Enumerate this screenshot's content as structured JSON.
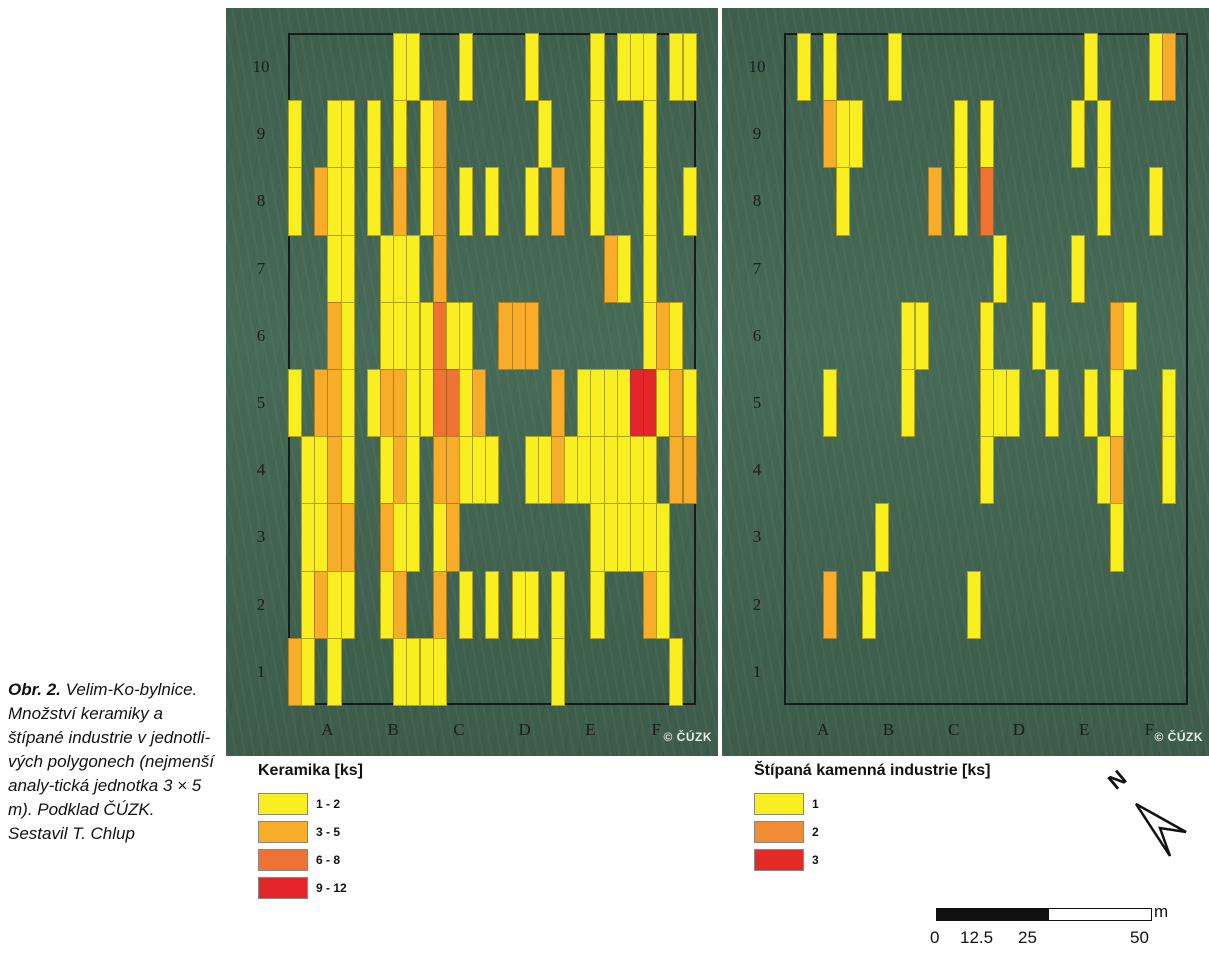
{
  "caption": {
    "label": "Obr. 2.",
    "text": " Velim-Ko-bylnice. Množství keramiky a štípané industrie v jednotli-vých polygonech (nejmenší analy-tická jednotka 3 × 5 m). Podklad ČÚZK. Sestavil T. Chlup"
  },
  "colors": {
    "1": "#f8ee20",
    "2": "#f7ad2a",
    "3": "#ef7232",
    "4": "#e3262a",
    "k1": "#f8ee20",
    "k2": "#f08d36",
    "k3": "#e22a27",
    "background": "#436550",
    "frame": "#1a1a1a"
  },
  "maps": {
    "row_labels": [
      "10",
      "9",
      "8",
      "7",
      "6",
      "5",
      "4",
      "3",
      "2",
      "1"
    ],
    "col_labels": [
      "A",
      "B",
      "C",
      "D",
      "E",
      "F"
    ],
    "copyright": "© ČÚZK",
    "keramika": {
      "legend_title": "Keramika [ks]",
      "legend": [
        {
          "label": "1 - 2",
          "color_key": "1"
        },
        {
          "label": "3 - 5",
          "color_key": "2"
        },
        {
          "label": "6 - 8",
          "color_key": "3"
        },
        {
          "label": "9 - 12",
          "color_key": "4"
        }
      ],
      "cells": [
        [
          0,
          0,
          0,
          0,
          0,
          0,
          0,
          0,
          1,
          1,
          0,
          0,
          0,
          1,
          0,
          0,
          0,
          0,
          1,
          0,
          0,
          0,
          0,
          1,
          0,
          1,
          1,
          1,
          0,
          1,
          1
        ],
        [
          1,
          0,
          0,
          1,
          1,
          0,
          1,
          0,
          1,
          0,
          1,
          2,
          0,
          0,
          0,
          0,
          0,
          0,
          0,
          1,
          0,
          0,
          0,
          1,
          0,
          0,
          0,
          1,
          0,
          0,
          0
        ],
        [
          1,
          0,
          2,
          1,
          1,
          0,
          1,
          0,
          2,
          0,
          1,
          2,
          0,
          1,
          0,
          1,
          0,
          0,
          1,
          0,
          2,
          0,
          0,
          1,
          0,
          0,
          0,
          1,
          0,
          0,
          1
        ],
        [
          0,
          0,
          0,
          1,
          1,
          0,
          0,
          1,
          1,
          1,
          0,
          2,
          0,
          0,
          0,
          0,
          0,
          0,
          0,
          0,
          0,
          0,
          0,
          0,
          2,
          1,
          0,
          1,
          0,
          0,
          0
        ],
        [
          0,
          0,
          0,
          2,
          1,
          0,
          0,
          1,
          1,
          1,
          1,
          3,
          1,
          1,
          0,
          0,
          2,
          2,
          2,
          0,
          0,
          0,
          0,
          0,
          0,
          0,
          0,
          1,
          2,
          1,
          0
        ],
        [
          1,
          0,
          2,
          2,
          1,
          0,
          1,
          2,
          2,
          1,
          1,
          3,
          3,
          1,
          2,
          0,
          0,
          0,
          0,
          0,
          2,
          0,
          1,
          1,
          1,
          1,
          4,
          4,
          1,
          2,
          1
        ],
        [
          0,
          1,
          1,
          2,
          1,
          0,
          0,
          1,
          2,
          1,
          0,
          2,
          2,
          1,
          1,
          1,
          0,
          0,
          1,
          1,
          2,
          1,
          1,
          1,
          1,
          1,
          1,
          1,
          0,
          2,
          2
        ],
        [
          0,
          1,
          1,
          2,
          2,
          0,
          0,
          2,
          1,
          1,
          0,
          1,
          2,
          0,
          0,
          0,
          0,
          0,
          0,
          0,
          0,
          0,
          0,
          1,
          1,
          1,
          1,
          1,
          1,
          0,
          0
        ],
        [
          0,
          1,
          2,
          1,
          1,
          0,
          0,
          1,
          2,
          0,
          0,
          2,
          0,
          1,
          0,
          1,
          0,
          1,
          1,
          0,
          1,
          0,
          0,
          1,
          0,
          0,
          0,
          2,
          1,
          0,
          0
        ],
        [
          2,
          1,
          0,
          1,
          0,
          0,
          0,
          0,
          1,
          1,
          1,
          1,
          0,
          0,
          0,
          0,
          0,
          0,
          0,
          0,
          1,
          0,
          0,
          0,
          0,
          0,
          0,
          0,
          0,
          1,
          0
        ]
      ]
    },
    "stipana": {
      "legend_title": "Štípaná kamenná industrie [ks]",
      "legend": [
        {
          "label": "1",
          "color_key": "k1"
        },
        {
          "label": "2",
          "color_key": "k2"
        },
        {
          "label": "3",
          "color_key": "k3"
        }
      ],
      "cells": [
        [
          0,
          1,
          0,
          1,
          0,
          0,
          0,
          0,
          1,
          0,
          0,
          0,
          0,
          0,
          0,
          0,
          0,
          0,
          0,
          0,
          0,
          0,
          0,
          1,
          0,
          0,
          0,
          0,
          1,
          2,
          0
        ],
        [
          0,
          0,
          0,
          2,
          1,
          1,
          0,
          0,
          0,
          0,
          0,
          0,
          0,
          1,
          0,
          1,
          0,
          0,
          0,
          0,
          0,
          0,
          1,
          0,
          1,
          0,
          0,
          0,
          0,
          0,
          0
        ],
        [
          0,
          0,
          0,
          0,
          1,
          0,
          0,
          0,
          0,
          0,
          0,
          2,
          0,
          1,
          0,
          3,
          0,
          0,
          0,
          0,
          0,
          0,
          0,
          0,
          1,
          0,
          0,
          0,
          1,
          0,
          0
        ],
        [
          0,
          0,
          0,
          0,
          0,
          0,
          0,
          0,
          0,
          0,
          0,
          0,
          0,
          0,
          0,
          0,
          1,
          0,
          0,
          0,
          0,
          0,
          1,
          0,
          0,
          0,
          0,
          0,
          0,
          0,
          0
        ],
        [
          0,
          0,
          0,
          0,
          0,
          0,
          0,
          0,
          0,
          1,
          1,
          0,
          0,
          0,
          0,
          1,
          0,
          0,
          0,
          1,
          0,
          0,
          0,
          0,
          0,
          2,
          1,
          0,
          0,
          0,
          0
        ],
        [
          0,
          0,
          0,
          1,
          0,
          0,
          0,
          0,
          0,
          1,
          0,
          0,
          0,
          0,
          0,
          1,
          1,
          1,
          0,
          0,
          1,
          0,
          0,
          1,
          0,
          1,
          0,
          0,
          0,
          1,
          0
        ],
        [
          0,
          0,
          0,
          0,
          0,
          0,
          0,
          0,
          0,
          0,
          0,
          0,
          0,
          0,
          0,
          1,
          0,
          0,
          0,
          0,
          0,
          0,
          0,
          0,
          1,
          2,
          0,
          0,
          0,
          1,
          0
        ],
        [
          0,
          0,
          0,
          0,
          0,
          0,
          0,
          1,
          0,
          0,
          0,
          0,
          0,
          0,
          0,
          0,
          0,
          0,
          0,
          0,
          0,
          0,
          0,
          0,
          0,
          1,
          0,
          0,
          0,
          0,
          0
        ],
        [
          0,
          0,
          0,
          2,
          0,
          0,
          1,
          0,
          0,
          0,
          0,
          0,
          0,
          0,
          1,
          0,
          0,
          0,
          0,
          0,
          0,
          0,
          0,
          0,
          0,
          0,
          0,
          0,
          0,
          0,
          0
        ],
        [
          0,
          0,
          0,
          0,
          0,
          0,
          0,
          0,
          0,
          0,
          0,
          0,
          0,
          0,
          0,
          0,
          0,
          0,
          0,
          0,
          0,
          0,
          0,
          0,
          0,
          0,
          0,
          0,
          0,
          0,
          0
        ]
      ]
    }
  },
  "north": {
    "label": "N"
  },
  "scale": {
    "unit": "m",
    "labels": [
      "0",
      "12.5",
      "25",
      "50"
    ]
  }
}
